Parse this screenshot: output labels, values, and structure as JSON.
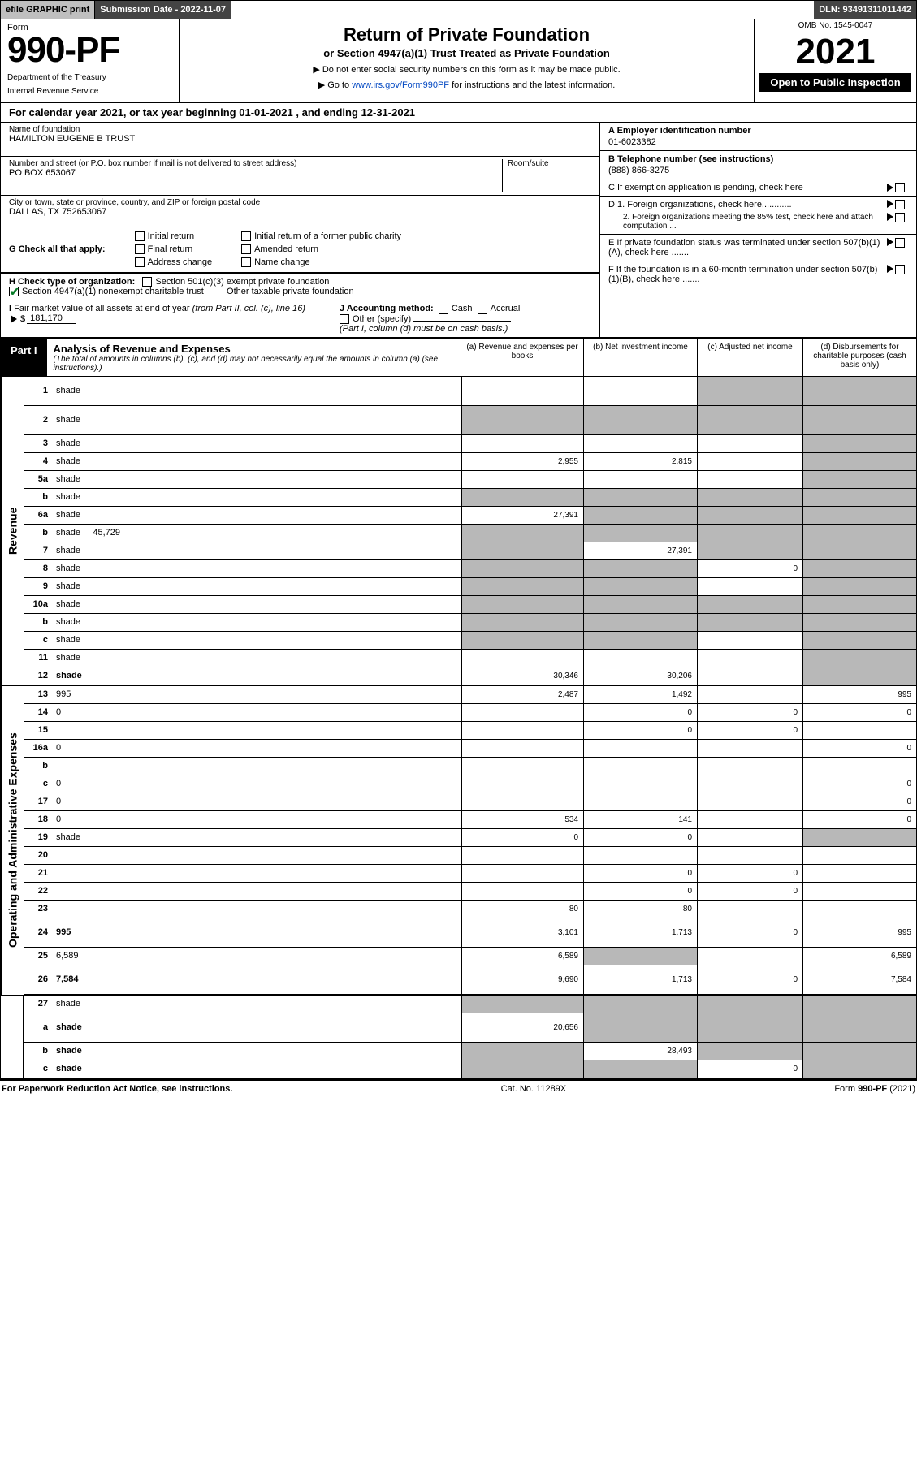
{
  "top": {
    "efile": "efile GRAPHIC print",
    "subdate_label": "Submission Date - 2022-11-07",
    "dln": "DLN: 93491311011442"
  },
  "header": {
    "form_word": "Form",
    "form_num": "990-PF",
    "dept": "Department of the Treasury",
    "irs": "Internal Revenue Service",
    "title": "Return of Private Foundation",
    "subtitle": "or Section 4947(a)(1) Trust Treated as Private Foundation",
    "note1": "▶ Do not enter social security numbers on this form as it may be made public.",
    "note2_pre": "▶ Go to ",
    "note2_link": "www.irs.gov/Form990PF",
    "note2_post": " for instructions and the latest information.",
    "omb": "OMB No. 1545-0047",
    "year": "2021",
    "open": "Open to Public Inspection"
  },
  "cal": {
    "text_pre": "For calendar year 2021, or tax year beginning ",
    "begin": "01-01-2021",
    "mid": " , and ending ",
    "end": "12-31-2021"
  },
  "entity": {
    "name_label": "Name of foundation",
    "name": "HAMILTON EUGENE B TRUST",
    "addr_label": "Number and street (or P.O. box number if mail is not delivered to street address)",
    "room_label": "Room/suite",
    "addr": "PO BOX 653067",
    "city_label": "City or town, state or province, country, and ZIP or foreign postal code",
    "city": "DALLAS, TX  752653067",
    "ein_label": "A Employer identification number",
    "ein": "01-6023382",
    "phone_label": "B Telephone number (see instructions)",
    "phone": "(888) 866-3275",
    "c_label": "C If exemption application is pending, check here",
    "d1": "D 1. Foreign organizations, check here............",
    "d2": "2. Foreign organizations meeting the 85% test, check here and attach computation ...",
    "e": "E  If private foundation status was terminated under section 507(b)(1)(A), check here .......",
    "f": "F  If the foundation is in a 60-month termination under section 507(b)(1)(B), check here .......",
    "g_label": "G Check all that apply:",
    "g_opts": [
      "Initial return",
      "Initial return of a former public charity",
      "Final return",
      "Amended return",
      "Address change",
      "Name change"
    ],
    "h_label": "H Check type of organization:",
    "h1": "Section 501(c)(3) exempt private foundation",
    "h2": "Section 4947(a)(1) nonexempt charitable trust",
    "h3": "Other taxable private foundation",
    "i_label": "I Fair market value of all assets at end of year (from Part II, col. (c), line 16)",
    "i_val": "181,170",
    "j_label": "J Accounting method:",
    "j1": "Cash",
    "j2": "Accrual",
    "j3": "Other (specify)",
    "j_note": "(Part I, column (d) must be on cash basis.)"
  },
  "part1": {
    "part": "Part I",
    "title": "Analysis of Revenue and Expenses",
    "sub": "(The total of amounts in columns (b), (c), and (d) may not necessarily equal the amounts in column (a) (see instructions).)",
    "col_a": "(a) Revenue and expenses per books",
    "col_b": "(b) Net investment income",
    "col_c": "(c) Adjusted net income",
    "col_d": "(d) Disbursements for charitable purposes (cash basis only)",
    "vlabels": {
      "rev": "Revenue",
      "exp": "Operating and Administrative Expenses"
    }
  },
  "rows": {
    "1": {
      "ln": "1",
      "d": "shade",
      "a": "",
      "b": "",
      "c": "shade"
    },
    "2": {
      "ln": "2",
      "d": "shade",
      "a": "shade",
      "b": "shade",
      "c": "shade"
    },
    "3": {
      "ln": "3",
      "d": "shade",
      "a": "",
      "b": "",
      "c": ""
    },
    "4": {
      "ln": "4",
      "d": "shade",
      "a": "2,955",
      "b": "2,815",
      "c": ""
    },
    "5a": {
      "ln": "5a",
      "d": "shade",
      "a": "",
      "b": "",
      "c": ""
    },
    "5b": {
      "ln": "b",
      "d": "shade",
      "a": "shade",
      "b": "shade",
      "c": "shade"
    },
    "6a": {
      "ln": "6a",
      "d": "shade",
      "a": "27,391",
      "b": "shade",
      "c": "shade"
    },
    "6b": {
      "ln": "b",
      "d": "shade",
      "v": "45,729",
      "a": "shade",
      "b": "shade",
      "c": "shade"
    },
    "7": {
      "ln": "7",
      "d": "shade",
      "a": "shade",
      "b": "27,391",
      "c": "shade"
    },
    "8": {
      "ln": "8",
      "d": "shade",
      "a": "shade",
      "b": "shade",
      "c": "0"
    },
    "9": {
      "ln": "9",
      "d": "shade",
      "a": "shade",
      "b": "shade",
      "c": ""
    },
    "10a": {
      "ln": "10a",
      "d": "shade",
      "a": "shade",
      "b": "shade",
      "c": "shade"
    },
    "10b": {
      "ln": "b",
      "d": "shade",
      "a": "shade",
      "b": "shade",
      "c": "shade"
    },
    "10c": {
      "ln": "c",
      "d": "shade",
      "a": "shade",
      "b": "shade",
      "c": ""
    },
    "11": {
      "ln": "11",
      "d": "shade",
      "a": "",
      "b": "",
      "c": ""
    },
    "12": {
      "ln": "12",
      "d": "shade",
      "bold": true,
      "a": "30,346",
      "b": "30,206",
      "c": ""
    },
    "13": {
      "ln": "13",
      "d": "995",
      "a": "2,487",
      "b": "1,492",
      "c": ""
    },
    "14": {
      "ln": "14",
      "d": "0",
      "a": "",
      "b": "0",
      "c": "0"
    },
    "15": {
      "ln": "15",
      "d": "",
      "a": "",
      "b": "0",
      "c": "0"
    },
    "16a": {
      "ln": "16a",
      "d": "0",
      "a": "",
      "b": "",
      "c": ""
    },
    "16b": {
      "ln": "b",
      "d": "",
      "a": "",
      "b": "",
      "c": ""
    },
    "16c": {
      "ln": "c",
      "d": "0",
      "a": "",
      "b": "",
      "c": ""
    },
    "17": {
      "ln": "17",
      "d": "0",
      "a": "",
      "b": "",
      "c": ""
    },
    "18": {
      "ln": "18",
      "d": "0",
      "a": "534",
      "b": "141",
      "c": ""
    },
    "19": {
      "ln": "19",
      "d": "shade",
      "a": "0",
      "b": "0",
      "c": ""
    },
    "20": {
      "ln": "20",
      "d": "",
      "a": "",
      "b": "",
      "c": ""
    },
    "21": {
      "ln": "21",
      "d": "",
      "a": "",
      "b": "0",
      "c": "0"
    },
    "22": {
      "ln": "22",
      "d": "",
      "a": "",
      "b": "0",
      "c": "0"
    },
    "23": {
      "ln": "23",
      "d": "",
      "a": "80",
      "b": "80",
      "c": ""
    },
    "24": {
      "ln": "24",
      "d": "995",
      "bold": true,
      "a": "3,101",
      "b": "1,713",
      "c": "0"
    },
    "25": {
      "ln": "25",
      "d": "6,589",
      "a": "6,589",
      "b": "shade",
      "c": ""
    },
    "26": {
      "ln": "26",
      "d": "7,584",
      "bold": true,
      "a": "9,690",
      "b": "1,713",
      "c": "0"
    },
    "27": {
      "ln": "27",
      "d": "shade",
      "a": "shade",
      "b": "shade",
      "c": "shade"
    },
    "27a": {
      "ln": "a",
      "d": "shade",
      "bold": true,
      "a": "20,656",
      "b": "shade",
      "c": "shade"
    },
    "27b": {
      "ln": "b",
      "d": "shade",
      "bold": true,
      "a": "shade",
      "b": "28,493",
      "c": "shade"
    },
    "27c": {
      "ln": "c",
      "d": "shade",
      "bold": true,
      "a": "shade",
      "b": "shade",
      "c": "0"
    }
  },
  "footer": {
    "left": "For Paperwork Reduction Act Notice, see instructions.",
    "mid": "Cat. No. 11289X",
    "right": "Form 990-PF (2021)"
  },
  "colors": {
    "shade": "#b8b8b8",
    "link": "#0047c2",
    "check": "#0a7d2a"
  }
}
